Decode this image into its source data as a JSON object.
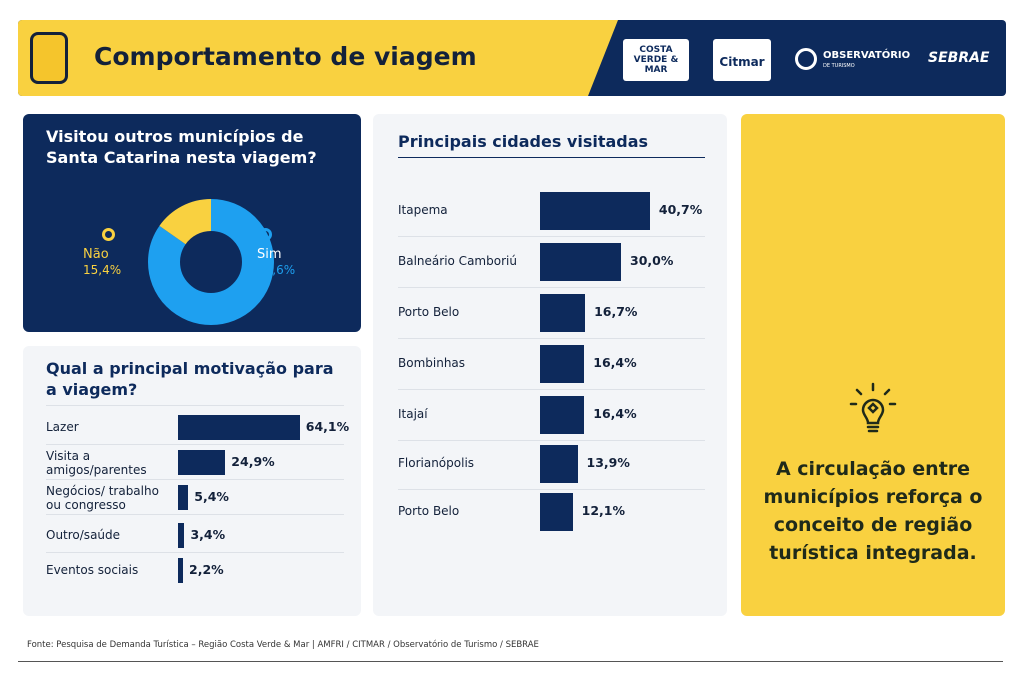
{
  "header": {
    "title": "Comportamento de viagem",
    "logos": [
      "COSTA VERDE & MAR",
      "Citmar",
      "OBSERVATÓRIO",
      "SEBRAE"
    ],
    "logo_sub": "DE TURISMO",
    "icon": "suitcase-icon"
  },
  "colors": {
    "navy": "#0d2a5c",
    "yellow": "#f9d140",
    "blue": "#1ea0f0"
  },
  "chart_data": [
    {
      "type": "pie",
      "title": "Visitou outros municípios de Santa Catarina nesta viagem?",
      "categories": [
        "Não",
        "Sim"
      ],
      "values": [
        15.4,
        84.6
      ],
      "labels": [
        "15,4%",
        "84,6%"
      ],
      "colors": [
        "#f9d140",
        "#1ea0f0"
      ],
      "donut": true
    },
    {
      "type": "bar",
      "orientation": "horizontal",
      "title": "Qual a principal motivação para a viagem?",
      "categories": [
        "Lazer",
        "Visita a amigos/parentes",
        "Negócios/ trabalho ou congresso",
        "Outro/saúde",
        "Eventos sociais"
      ],
      "values": [
        64.1,
        24.9,
        5.4,
        3.4,
        2.2
      ],
      "labels": [
        "64,1%",
        "24,9%",
        "5,4%",
        "3,4%",
        "2,2%"
      ]
    },
    {
      "type": "bar",
      "orientation": "horizontal",
      "title": "Principais cidades visitadas",
      "categories": [
        "Itapema",
        "Balneário Camboriú",
        "Porto Belo",
        "Bombinhas",
        "Itajaí",
        "Florianópolis",
        "Porto Belo"
      ],
      "values": [
        40.7,
        30.0,
        16.7,
        16.4,
        16.4,
        13.9,
        12.1
      ],
      "labels": [
        "40,7%",
        "30,0%",
        "16,7%",
        "16,4%",
        "16,4%",
        "13,9%",
        "12,1%"
      ]
    }
  ],
  "insight": {
    "text": "A circulação entre municípios reforça o conceito de região turística integrada.",
    "icon": "lightbulb-icon"
  },
  "footer": {
    "source": "Fonte: Pesquisa de Demanda Turística – Região Costa Verde & Mar | AMFRI / CITMAR / Observatório de Turismo / SEBRAE"
  }
}
